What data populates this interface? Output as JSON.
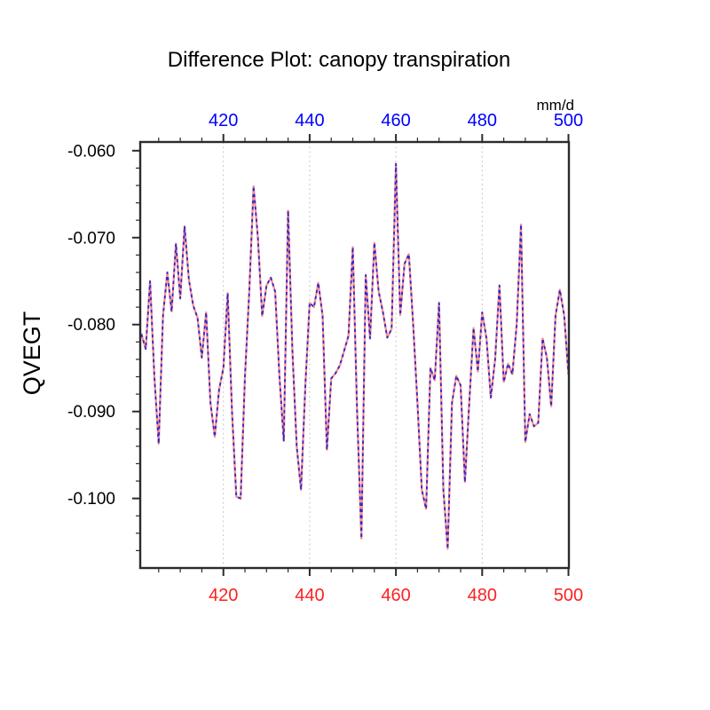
{
  "title": "Difference Plot: canopy transpiration",
  "axes": {
    "top": {
      "unit_label": "mm/d",
      "tick_labels": [
        "420",
        "440",
        "460",
        "480",
        "500"
      ],
      "tick_values": [
        420,
        440,
        460,
        480,
        500
      ],
      "minor_tick_values": [
        405,
        410,
        415,
        425,
        430,
        435,
        445,
        450,
        455,
        465,
        470,
        475,
        485,
        490,
        495
      ],
      "label_color": "#0000ff"
    },
    "bottom": {
      "tick_labels": [
        "420",
        "440",
        "460",
        "480",
        "500"
      ],
      "tick_values": [
        420,
        440,
        460,
        480,
        500
      ],
      "minor_tick_values": [
        405,
        410,
        415,
        425,
        430,
        435,
        445,
        450,
        455,
        465,
        470,
        475,
        485,
        490,
        495
      ],
      "label_color": "#ff2020"
    },
    "left": {
      "title": "QVEGT",
      "tick_labels": [
        "-0.060",
        "-0.070",
        "-0.080",
        "-0.090",
        "-0.100"
      ],
      "tick_values": [
        -0.06,
        -0.07,
        -0.08,
        -0.09,
        -0.1
      ],
      "minor_tick_values": [
        -0.062,
        -0.064,
        -0.066,
        -0.068,
        -0.072,
        -0.074,
        -0.076,
        -0.078,
        -0.082,
        -0.084,
        -0.086,
        -0.088,
        -0.092,
        -0.094,
        -0.096,
        -0.098,
        -0.102,
        -0.104,
        -0.106
      ],
      "label_color": "#000000"
    }
  },
  "colors": {
    "frame": "#2b2b2b",
    "grid": "#c6c6c6",
    "background": "#ffffff",
    "series_red": "#ff8f8f",
    "series_blue": "#2929cc"
  },
  "chart_data": {
    "type": "line",
    "title": "Difference Plot: canopy transpiration",
    "ylabel": "QVEGT",
    "top_axis_unit": "mm/d",
    "xlim": [
      400.72,
      500.1
    ],
    "ylim": [
      -0.108,
      -0.059
    ],
    "grid": {
      "x_major_dotted": [
        420,
        440,
        460,
        480
      ]
    },
    "legend": "none",
    "x_start": 401,
    "x_step": 1,
    "series": [
      {
        "name": "run-1-red-solid",
        "color": "#ff8f8f",
        "line_style": "solid"
      },
      {
        "name": "run-2-blue-dashed",
        "color": "#2929cc",
        "line_style": "dashed"
      }
    ],
    "series_overlap": true,
    "values": [
      -0.0811,
      -0.0828,
      -0.075,
      -0.086,
      -0.0937,
      -0.079,
      -0.074,
      -0.0785,
      -0.0707,
      -0.077,
      -0.0687,
      -0.0748,
      -0.0778,
      -0.0792,
      -0.0838,
      -0.0786,
      -0.089,
      -0.0929,
      -0.0875,
      -0.085,
      -0.0764,
      -0.09,
      -0.0998,
      -0.1,
      -0.086,
      -0.0762,
      -0.0641,
      -0.07,
      -0.079,
      -0.0755,
      -0.0746,
      -0.0762,
      -0.086,
      -0.0934,
      -0.0669,
      -0.083,
      -0.094,
      -0.099,
      -0.087,
      -0.0775,
      -0.078,
      -0.0752,
      -0.079,
      -0.0944,
      -0.0862,
      -0.0856,
      -0.0847,
      -0.083,
      -0.0813,
      -0.0711,
      -0.09,
      -0.1046,
      -0.0743,
      -0.0816,
      -0.0706,
      -0.0762,
      -0.0786,
      -0.0815,
      -0.0805,
      -0.0615,
      -0.0789,
      -0.073,
      -0.0719,
      -0.08,
      -0.0891,
      -0.099,
      -0.1012,
      -0.085,
      -0.0864,
      -0.0775,
      -0.099,
      -0.1058,
      -0.089,
      -0.0859,
      -0.087,
      -0.0981,
      -0.089,
      -0.0804,
      -0.0854,
      -0.0786,
      -0.0816,
      -0.0884,
      -0.084,
      -0.0755,
      -0.0866,
      -0.0845,
      -0.0857,
      -0.08,
      -0.0685,
      -0.0935,
      -0.0903,
      -0.0917,
      -0.0913,
      -0.0816,
      -0.0838,
      -0.0894,
      -0.079,
      -0.076,
      -0.0789,
      -0.0857
    ]
  }
}
